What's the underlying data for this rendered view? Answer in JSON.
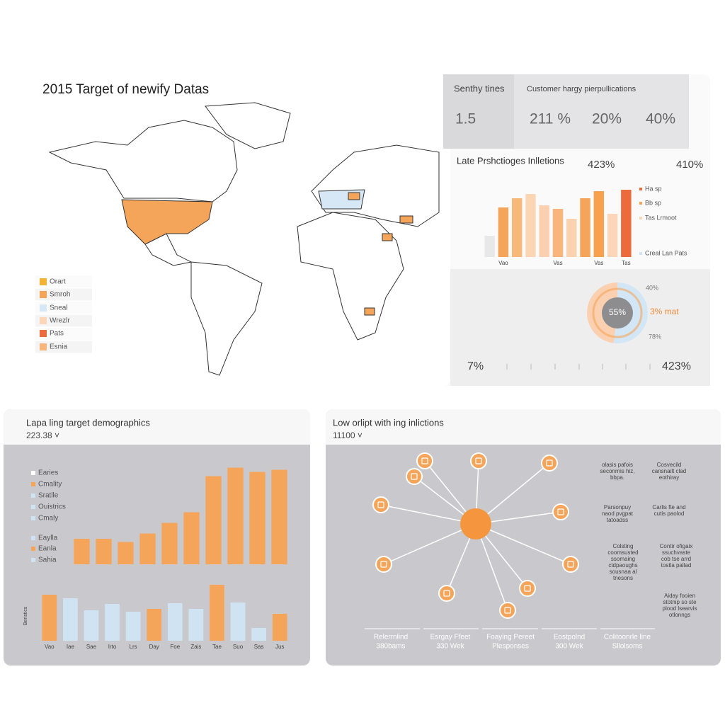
{
  "map_panel": {
    "title": "2015 Target of newify Datas",
    "legend": [
      "Orart",
      "Smroh",
      "Sneal",
      "Wrezlr",
      "Pats",
      "Esnia"
    ],
    "legend_colors": [
      "#f2b233",
      "#f5a55a",
      "#d6e8f5",
      "#fbd6b8",
      "#ec6b3c",
      "#f8b57c"
    ]
  },
  "stats": {
    "label_1": "Senthy tines",
    "label_2": "Customer hargy pierpullications",
    "values": [
      "1.5",
      "211 %",
      "20%",
      "40%"
    ]
  },
  "bar_panel": {
    "title": "Late Prshctioges Inlletions",
    "figures": [
      "423%",
      "410%"
    ],
    "legend": [
      "Ha sp",
      "Bb sp",
      "Tas Lrmoot",
      "Creal Lan Pats"
    ],
    "legend_colors": [
      "#ec6b3c",
      "#f5a55a",
      "#fbd6b8",
      "#cfe3f3"
    ]
  },
  "donut_panel": {
    "center": "55%",
    "labels": [
      "40%",
      "3% mat",
      "78%"
    ],
    "footer_left": "7%",
    "footer_right": "423%"
  },
  "demo_panel": {
    "title": "Lapa ling target demographics",
    "subtitle": "223.38 ˅",
    "legend": [
      "Earies",
      "Cmality",
      "Sratlle",
      "Ouistrics",
      "Cmaly",
      "Eaylla",
      "Eanla",
      "Sahia"
    ],
    "legend_colors": [
      "#ffffff",
      "#f5a55a",
      "#cfe3f3",
      "#cfe3f3",
      "#cfe3f3",
      "#cfe3f3",
      "#f5a55a",
      "#cfe3f3"
    ],
    "axis_label": "Beristics"
  },
  "network_panel": {
    "title": "Low orlipt with ing inlictions",
    "subtitle": "11100 ˅",
    "notes": [
      [
        "olasis pafois",
        "seconrnis hiz,",
        "bbpa."
      ],
      [
        "Cosvecild",
        "cansnailt clad",
        "eothiray"
      ],
      [
        "Parsonpuy",
        "naod pvgpat",
        "tatoadss"
      ],
      [
        "Carlis fte and",
        "cutis paolod"
      ],
      [
        "Colsting",
        "coomsusted",
        "ssomaing",
        "ctdpaoughs",
        "sousnaa al",
        "tnesons"
      ],
      [
        "Contir ofigaix",
        "ssuchvaste",
        "cob tse arrd",
        "tostla pallad"
      ],
      [
        "Aiday fooien",
        "stotnip so ste",
        "plood lsearvis",
        "otlonngs"
      ]
    ],
    "footer": [
      [
        "Relerrnlind",
        "380bams"
      ],
      [
        "Esrgay Ffeet",
        "330 Wek"
      ],
      [
        "Foaying Pereet",
        "Plesponses"
      ],
      [
        "Eostpolnd",
        "300 Wek"
      ],
      [
        "Colitoonrle line",
        "Sllolsoms"
      ]
    ]
  },
  "chart_data": [
    {
      "type": "bar",
      "categories": [
        null,
        "Vao",
        null,
        null,
        null,
        "Vas",
        null,
        null,
        "Vas",
        null,
        "Tas"
      ],
      "values": [
        30,
        70,
        83,
        89,
        73,
        68,
        54,
        83,
        93,
        61,
        95
      ],
      "colors": [
        "#e8e8e8",
        "#f5a55a",
        "#f7b87a",
        "#fbd6b5",
        "#fbd0b0",
        "#f8b57c",
        "#fbd2b0",
        "#f5a55a",
        "#f7a04e",
        "#fbd6b8",
        "#ec6b3c"
      ],
      "ylim": [
        0,
        100
      ]
    },
    {
      "type": "pie",
      "values": [
        48,
        52
      ],
      "colors": [
        "#fbd0b0",
        "#d3e6f5"
      ]
    },
    {
      "type": "bar",
      "categories": [
        null,
        null,
        null,
        null,
        null,
        null,
        null,
        null,
        null,
        null
      ],
      "values": [
        24,
        24,
        21,
        29,
        39,
        49,
        83,
        91,
        87,
        89
      ],
      "colors": [
        "#f5a55a",
        "#f5a55a",
        "#f5a55a",
        "#f5a55a",
        "#f5a55a",
        "#f5a55a",
        "#f5a55a",
        "#f5a55a",
        "#f5a55a",
        "#f5a55a"
      ],
      "ylim": [
        0,
        100
      ]
    },
    {
      "type": "bar",
      "categories": [
        "Vao",
        "Iae",
        "Sae",
        "Irto",
        "Lrs",
        "Day",
        "Foe",
        "Zais",
        "Tae",
        "Suo",
        "Sas",
        "Jus"
      ],
      "values": [
        65,
        60,
        43,
        52,
        41,
        45,
        53,
        45,
        79,
        54,
        18,
        38
      ],
      "colors": [
        "#f5a55a",
        "#cfe3f3",
        "#cfe3f3",
        "#cfe3f3",
        "#cfe3f3",
        "#f5a55a",
        "#cfe3f3",
        "#cfe3f3",
        "#f5a55a",
        "#cfe3f3",
        "#cfe3f3",
        "#f5a55a"
      ],
      "ylim": [
        0,
        100
      ]
    }
  ]
}
